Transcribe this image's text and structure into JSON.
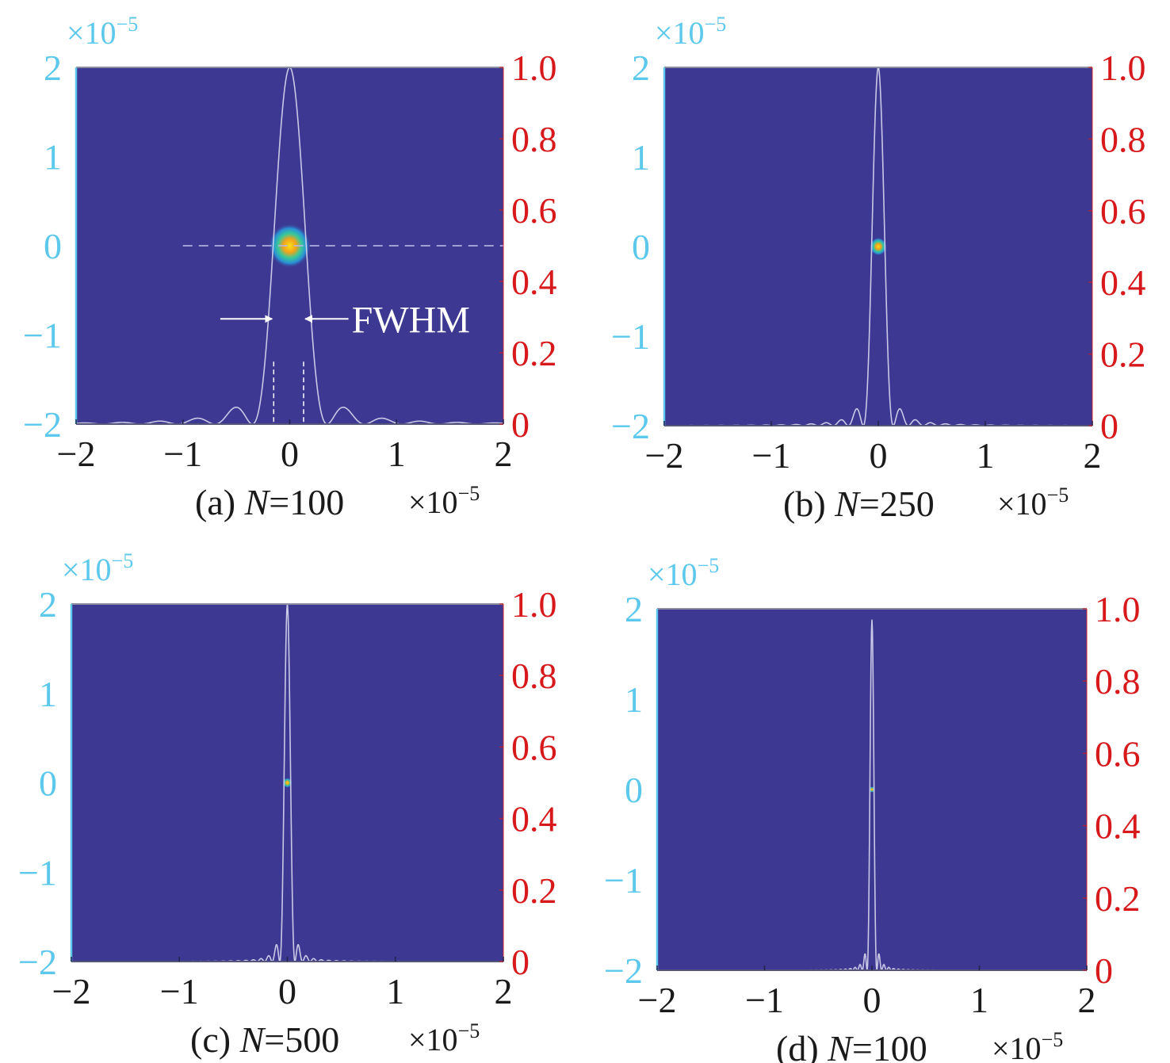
{
  "colors": {
    "left_axis": "#5bc8ec",
    "right_axis": "#d7191c",
    "bottom_axis": "#1a1a1a",
    "plot_background": "#3d3891",
    "curve": "#d8d8f0",
    "spot_core": "#f5e21a",
    "spot_mid": "#f4a21a",
    "spot_ring": "#37c89a",
    "spot_halo": "#2b8fd6"
  },
  "chart_data": [
    {
      "type": "heatmap",
      "panel": "(a)",
      "caption_prefix": "(a) ",
      "caption_var": "N",
      "caption_value": "=100",
      "x_exponent_label": "×10",
      "x_exponent_sup": "−5",
      "y_exponent_label": "×10",
      "y_exponent_sup": "−5",
      "xlim": [
        -2e-05,
        2e-05
      ],
      "ylim": [
        -2e-05,
        2e-05
      ],
      "right_ylim": [
        0,
        1.0
      ],
      "x_ticks": [
        "−2",
        "−1",
        "0",
        "1",
        "2"
      ],
      "y_ticks": [
        "2",
        "1",
        "0",
        "−1",
        "−2"
      ],
      "right_ticks": [
        "1.0",
        "0.8",
        "0.6",
        "0.4",
        "0.2",
        "0"
      ],
      "profile_peak": 1.0,
      "profile_first_null": 0.35,
      "spot_radius": 0.16,
      "annotation": "FWHM",
      "fwhm_bounds": [
        -0.15,
        0.13
      ],
      "dashed_center_line": true
    },
    {
      "type": "heatmap",
      "panel": "(b)",
      "caption_prefix": "(b) ",
      "caption_var": "N",
      "caption_value": "=250",
      "x_exponent_label": "×10",
      "x_exponent_sup": "−5",
      "y_exponent_label": "×10",
      "y_exponent_sup": "−5",
      "xlim": [
        -2e-05,
        2e-05
      ],
      "ylim": [
        -2e-05,
        2e-05
      ],
      "right_ylim": [
        0,
        1.0
      ],
      "x_ticks": [
        "−2",
        "−1",
        "0",
        "1",
        "2"
      ],
      "y_ticks": [
        "2",
        "1",
        "0",
        "−1",
        "−2"
      ],
      "right_ticks": [
        "1.0",
        "0.8",
        "0.6",
        "0.4",
        "0.2",
        "0"
      ],
      "profile_peak": 1.0,
      "profile_first_null": 0.14,
      "spot_radius": 0.065
    },
    {
      "type": "heatmap",
      "panel": "(c)",
      "caption_prefix": "(c) ",
      "caption_var": "N",
      "caption_value": "=500",
      "x_exponent_label": "×10",
      "x_exponent_sup": "−5",
      "y_exponent_label": "×10",
      "y_exponent_sup": "−5",
      "xlim": [
        -2e-05,
        2e-05
      ],
      "ylim": [
        -2e-05,
        2e-05
      ],
      "right_ylim": [
        0,
        1.0
      ],
      "x_ticks": [
        "−2",
        "−1",
        "0",
        "1",
        "2"
      ],
      "y_ticks": [
        "2",
        "1",
        "0",
        "−1",
        "−2"
      ],
      "right_ticks": [
        "1.0",
        "0.8",
        "0.6",
        "0.4",
        "0.2",
        "0"
      ],
      "profile_peak": 1.0,
      "profile_first_null": 0.07,
      "spot_radius": 0.035
    },
    {
      "type": "heatmap",
      "panel": "(d)",
      "caption_prefix": "(d) ",
      "caption_var": "N",
      "caption_value": "=100",
      "x_exponent_label": "×10",
      "x_exponent_sup": "−5",
      "y_exponent_label": "×10",
      "y_exponent_sup": "−5",
      "xlim": [
        -2e-05,
        2e-05
      ],
      "ylim": [
        -2e-05,
        2e-05
      ],
      "right_ylim": [
        0,
        1.0
      ],
      "x_ticks": [
        "−2",
        "−1",
        "0",
        "1",
        "2"
      ],
      "y_ticks": [
        "2",
        "1",
        "0",
        "−1",
        "−2"
      ],
      "right_ticks": [
        "1.0",
        "0.8",
        "0.6",
        "0.4",
        "0.2",
        "0"
      ],
      "profile_peak": 0.97,
      "profile_first_null": 0.045,
      "spot_radius": 0.022
    }
  ]
}
